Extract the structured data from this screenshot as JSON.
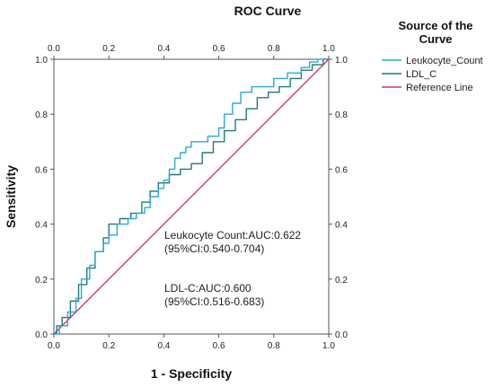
{
  "chart_data": {
    "type": "line",
    "title": "ROC Curve",
    "xlabel": "1 - Specificity",
    "ylabel": "Sensitivity",
    "xlim": [
      0,
      1
    ],
    "ylim": [
      0,
      1
    ],
    "x_ticks": [
      "0.0",
      "0.2",
      "0.4",
      "0.6",
      "0.8",
      "1.0"
    ],
    "y_ticks": [
      "0.0",
      "0.2",
      "0.4",
      "0.6",
      "0.8",
      "1.0"
    ],
    "grid": false,
    "legend": {
      "title_lines": [
        "Source of the",
        "Curve"
      ],
      "position": "right"
    },
    "series": [
      {
        "name": "Leukocyte_Count",
        "color": "#2aa8d8",
        "x": [
          0,
          0.02,
          0.02,
          0.05,
          0.05,
          0.08,
          0.08,
          0.1,
          0.1,
          0.13,
          0.13,
          0.15,
          0.15,
          0.18,
          0.18,
          0.2,
          0.2,
          0.23,
          0.23,
          0.27,
          0.27,
          0.3,
          0.3,
          0.33,
          0.33,
          0.35,
          0.35,
          0.38,
          0.38,
          0.4,
          0.4,
          0.42,
          0.42,
          0.44,
          0.44,
          0.46,
          0.46,
          0.48,
          0.48,
          0.5,
          0.5,
          0.52,
          0.52,
          0.56,
          0.56,
          0.6,
          0.6,
          0.62,
          0.62,
          0.65,
          0.65,
          0.68,
          0.68,
          0.72,
          0.72,
          0.75,
          0.75,
          0.8,
          0.8,
          0.85,
          0.85,
          0.9,
          0.9,
          0.93,
          0.93,
          0.96,
          0.96,
          1.0
        ],
        "y": [
          0,
          0,
          0.03,
          0.03,
          0.08,
          0.08,
          0.13,
          0.13,
          0.2,
          0.2,
          0.25,
          0.25,
          0.3,
          0.3,
          0.33,
          0.33,
          0.36,
          0.36,
          0.4,
          0.4,
          0.42,
          0.42,
          0.44,
          0.44,
          0.46,
          0.46,
          0.5,
          0.5,
          0.53,
          0.53,
          0.56,
          0.56,
          0.6,
          0.6,
          0.64,
          0.64,
          0.66,
          0.66,
          0.68,
          0.68,
          0.7,
          0.7,
          0.7,
          0.7,
          0.72,
          0.72,
          0.75,
          0.75,
          0.8,
          0.8,
          0.84,
          0.84,
          0.88,
          0.88,
          0.9,
          0.9,
          0.9,
          0.9,
          0.93,
          0.93,
          0.95,
          0.95,
          0.97,
          0.97,
          0.99,
          0.99,
          1.0,
          1.0
        ]
      },
      {
        "name": "LDL_C",
        "color": "#1f7a7a",
        "x": [
          0,
          0.01,
          0.01,
          0.03,
          0.03,
          0.06,
          0.06,
          0.09,
          0.09,
          0.12,
          0.12,
          0.15,
          0.15,
          0.18,
          0.18,
          0.2,
          0.2,
          0.24,
          0.24,
          0.28,
          0.28,
          0.32,
          0.32,
          0.35,
          0.35,
          0.38,
          0.38,
          0.42,
          0.42,
          0.46,
          0.46,
          0.5,
          0.5,
          0.54,
          0.54,
          0.58,
          0.58,
          0.62,
          0.62,
          0.66,
          0.66,
          0.7,
          0.7,
          0.74,
          0.74,
          0.78,
          0.78,
          0.82,
          0.82,
          0.86,
          0.86,
          0.9,
          0.9,
          0.94,
          0.94,
          0.98,
          0.98,
          1.0
        ],
        "y": [
          0,
          0,
          0.03,
          0.03,
          0.06,
          0.06,
          0.12,
          0.12,
          0.18,
          0.18,
          0.24,
          0.24,
          0.3,
          0.3,
          0.35,
          0.35,
          0.4,
          0.4,
          0.42,
          0.42,
          0.44,
          0.44,
          0.48,
          0.48,
          0.52,
          0.52,
          0.55,
          0.55,
          0.58,
          0.58,
          0.6,
          0.6,
          0.62,
          0.62,
          0.66,
          0.66,
          0.7,
          0.7,
          0.74,
          0.74,
          0.78,
          0.78,
          0.82,
          0.82,
          0.86,
          0.86,
          0.88,
          0.88,
          0.9,
          0.9,
          0.93,
          0.93,
          0.96,
          0.96,
          0.98,
          0.98,
          1.0,
          1.0
        ]
      },
      {
        "name": "Reference Line",
        "color": "#d6336c",
        "x": [
          0,
          1
        ],
        "y": [
          0,
          1
        ]
      }
    ],
    "annotations": [
      {
        "lines": [
          "Leukocyte Count:AUC:0.622",
          "(95%CI:0.540-0.704)"
        ]
      },
      {
        "lines": [
          "LDL-C:AUC:0.600",
          "(95%CI:0.516-0.683)"
        ]
      }
    ]
  }
}
